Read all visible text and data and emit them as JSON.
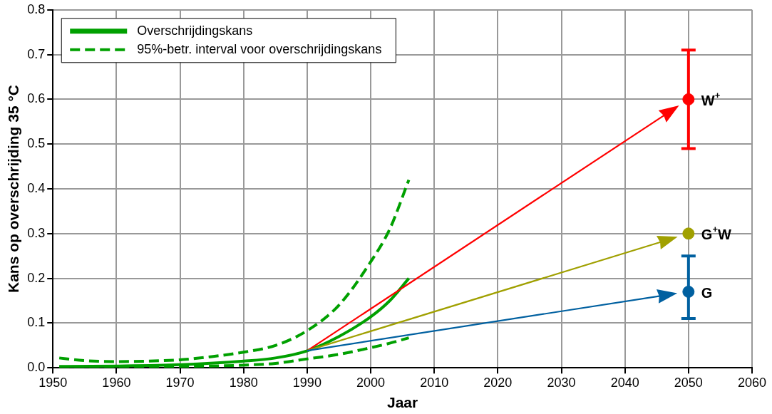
{
  "chart_data": {
    "type": "line",
    "xlabel": "Jaar",
    "ylabel": "Kans op overschrijding 35 °C",
    "xlim": [
      1950,
      2060
    ],
    "xticks": [
      1950,
      1960,
      1970,
      1980,
      1990,
      2000,
      2010,
      2020,
      2030,
      2040,
      2050,
      2060
    ],
    "ylim": [
      0,
      0.8
    ],
    "yticks": [
      {
        "value": 0,
        "label": "0.0"
      },
      {
        "value": 0.1,
        "label": "0.1"
      },
      {
        "value": 0.2,
        "label": "0.2"
      },
      {
        "value": 0.3,
        "label": "0.3"
      },
      {
        "value": 0.4,
        "label": "0.4"
      },
      {
        "value": 0.5,
        "label": "0.5"
      },
      {
        "value": 0.6,
        "label": "0.6"
      },
      {
        "value": 0.7,
        "label": "0.7"
      },
      {
        "value": 0.8,
        "label": "0.8"
      }
    ],
    "grid": true,
    "legend": "top left",
    "marker": "none",
    "line_style": "solid",
    "series": [
      {
        "name": "95%-betr. interval voor overschrijdingskans",
        "color": "#00a000",
        "line_style": "dashed",
        "x": [
          1951,
          1955,
          1960,
          1965,
          1970,
          1975,
          1980,
          1985,
          1990,
          1995,
          2000,
          2003,
          2006
        ],
        "values": [
          0.022,
          0.016,
          0.014,
          0.015,
          0.018,
          0.025,
          0.035,
          0.05,
          0.083,
          0.14,
          0.237,
          0.31,
          0.42
        ]
      },
      {
        "color": "#00a000",
        "line_style": "dashed",
        "x": [
          1951,
          1960,
          1970,
          1980,
          1985,
          1990,
          1995,
          2000,
          2003,
          2006
        ],
        "values": [
          0.002,
          0.002,
          0.003,
          0.006,
          0.01,
          0.02,
          0.03,
          0.045,
          0.055,
          0.067
        ]
      },
      {
        "name": "Overschrijdingskans",
        "color": "#00a000",
        "x": [
          1951,
          1960,
          1970,
          1980,
          1985,
          1990,
          1995,
          2000,
          2003,
          2006
        ],
        "values": [
          0.003,
          0.004,
          0.007,
          0.015,
          0.022,
          0.038,
          0.07,
          0.114,
          0.15,
          0.2
        ]
      },
      {
        "name": "W$^{+}$",
        "type": "scatter",
        "marker": "circle",
        "color": "#ff0000",
        "x": [
          2050
        ],
        "values": [
          0.6
        ],
        "errors": [
          [
            0.49,
            0.71
          ]
        ]
      },
      {
        "name": "G$^{+}$W",
        "type": "scatter",
        "marker": "circle",
        "color": "#a0a000",
        "x": [
          2050
        ],
        "values": [
          0.3
        ]
      },
      {
        "name": "G",
        "type": "scatter",
        "marker": "circle",
        "color": "#0060a0",
        "x": [
          2050
        ],
        "values": [
          0.17
        ],
        "errors": [
          [
            0.11,
            0.25
          ]
        ]
      }
    ]
  }
}
